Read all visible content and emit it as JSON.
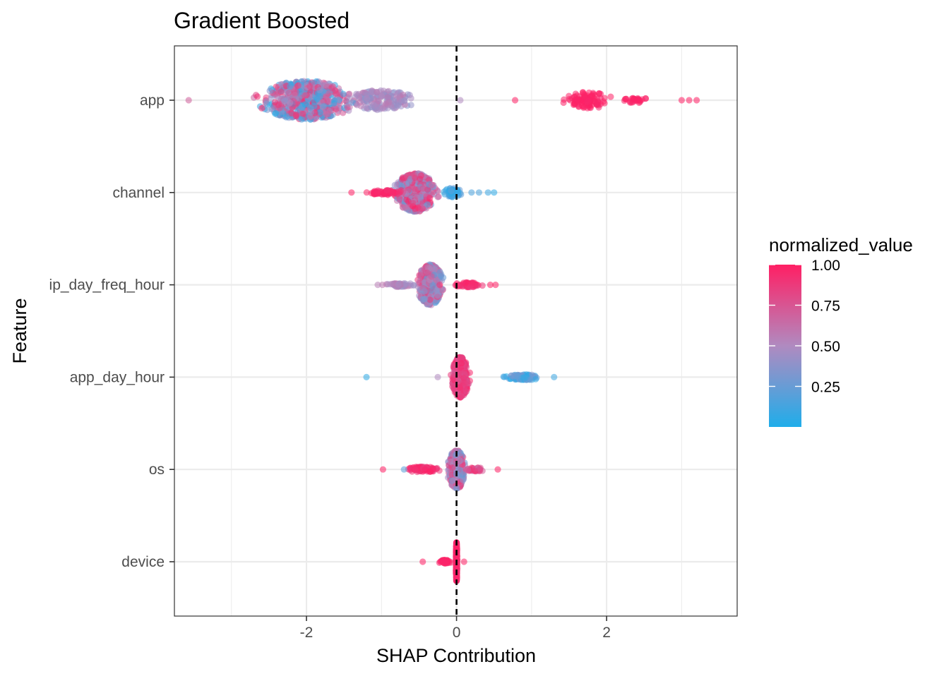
{
  "chart_data": {
    "type": "scatter",
    "subtype": "beeswarm",
    "title": "Gradient Boosted",
    "xlabel": "SHAP Contribution",
    "ylabel": "Feature",
    "xlim": [
      -3.76,
      3.74
    ],
    "x_ticks": [
      -2,
      0,
      2
    ],
    "x_tick_labels": [
      "-2",
      "0",
      "2"
    ],
    "grid": true,
    "reference_line": {
      "x": 0,
      "style": "dashed",
      "color": "#000000"
    },
    "categories": [
      "app",
      "channel",
      "ip_day_freq_hour",
      "app_day_hour",
      "os",
      "device"
    ],
    "series": [
      {
        "name": "app",
        "groups": [
          {
            "center": -2.0,
            "spread": 0.85,
            "height": 0.42,
            "count": 640,
            "color_low": 0.0,
            "color_high": 0.95
          },
          {
            "center": -1.0,
            "spread": 0.55,
            "height": 0.22,
            "count": 170,
            "color_low": 0.35,
            "color_high": 0.6
          },
          {
            "center": 1.75,
            "spread": 0.4,
            "height": 0.18,
            "count": 110,
            "color_low": 0.95,
            "color_high": 1.0
          },
          {
            "center": 2.4,
            "spread": 0.25,
            "height": 0.06,
            "count": 30,
            "color_low": 0.95,
            "color_high": 1.0
          }
        ],
        "outliers": [
          {
            "x": -3.57,
            "value": 0.7
          },
          {
            "x": 0.05,
            "value": 0.5
          },
          {
            "x": 0.78,
            "value": 1.0
          },
          {
            "x": 3.0,
            "value": 1.0
          },
          {
            "x": 3.1,
            "value": 1.0
          },
          {
            "x": 3.2,
            "value": 1.0
          }
        ]
      },
      {
        "name": "channel",
        "groups": [
          {
            "center": -0.55,
            "spread": 0.35,
            "height": 0.42,
            "count": 520,
            "color_low": 0.2,
            "color_high": 1.0
          },
          {
            "center": -0.95,
            "spread": 0.3,
            "height": 0.05,
            "count": 60,
            "color_low": 0.9,
            "color_high": 1.0
          },
          {
            "center": -0.05,
            "spread": 0.15,
            "height": 0.1,
            "count": 70,
            "color_low": 0.0,
            "color_high": 0.25
          }
        ],
        "outliers": [
          {
            "x": -1.4,
            "value": 1.0
          },
          {
            "x": 0.2,
            "value": 0.15
          },
          {
            "x": 0.3,
            "value": 0.15
          },
          {
            "x": 0.42,
            "value": 0.1
          },
          {
            "x": 0.5,
            "value": 0.05
          }
        ]
      },
      {
        "name": "ip_day_freq_hour",
        "groups": [
          {
            "center": -0.35,
            "spread": 0.22,
            "height": 0.44,
            "count": 440,
            "color_low": 0.2,
            "color_high": 0.95
          },
          {
            "center": -0.75,
            "spread": 0.25,
            "height": 0.04,
            "count": 50,
            "color_low": 0.35,
            "color_high": 0.6
          },
          {
            "center": 0.15,
            "spread": 0.25,
            "height": 0.05,
            "count": 70,
            "color_low": 0.85,
            "color_high": 1.0
          }
        ],
        "outliers": [
          {
            "x": -1.05,
            "value": 0.55
          },
          {
            "x": 0.45,
            "value": 1.0
          },
          {
            "x": 0.52,
            "value": 1.0
          }
        ]
      },
      {
        "name": "app_day_hour",
        "groups": [
          {
            "center": 0.05,
            "spread": 0.15,
            "height": 0.44,
            "count": 440,
            "color_low": 0.7,
            "color_high": 1.0
          },
          {
            "center": 0.9,
            "spread": 0.35,
            "height": 0.06,
            "count": 110,
            "color_low": 0.0,
            "color_high": 0.35
          }
        ],
        "outliers": [
          {
            "x": -1.2,
            "value": 0.05
          },
          {
            "x": -0.25,
            "value": 0.5
          },
          {
            "x": 1.3,
            "value": 0.1
          }
        ]
      },
      {
        "name": "os",
        "groups": [
          {
            "center": 0.0,
            "spread": 0.15,
            "height": 0.42,
            "count": 420,
            "color_low": 0.2,
            "color_high": 0.9
          },
          {
            "center": -0.45,
            "spread": 0.3,
            "height": 0.06,
            "count": 90,
            "color_low": 0.85,
            "color_high": 1.0
          },
          {
            "center": 0.25,
            "spread": 0.2,
            "height": 0.04,
            "count": 30,
            "color_low": 0.6,
            "color_high": 1.0
          }
        ],
        "outliers": [
          {
            "x": -0.98,
            "value": 1.0
          },
          {
            "x": -0.7,
            "value": 0.2
          },
          {
            "x": 0.55,
            "value": 1.0
          }
        ]
      },
      {
        "name": "device",
        "groups": [
          {
            "center": 0.0,
            "spread": 0.01,
            "height": 0.42,
            "count": 320,
            "color_low": 0.95,
            "color_high": 1.0
          },
          {
            "center": -0.15,
            "spread": 0.12,
            "height": 0.04,
            "count": 40,
            "color_low": 0.95,
            "color_high": 1.0
          }
        ],
        "outliers": [
          {
            "x": -0.45,
            "value": 1.0
          },
          {
            "x": 0.1,
            "value": 1.0
          }
        ]
      }
    ],
    "legend": {
      "title": "normalized_value",
      "placement": "right",
      "type": "colorbar",
      "range": [
        0,
        1
      ],
      "breaks": [
        0.25,
        0.5,
        0.75,
        1.0
      ],
      "labels": [
        "0.25",
        "0.50",
        "0.75",
        "1.00"
      ],
      "color_low": "#1fadea",
      "color_mid": "#b08ac0",
      "color_high": "#ff1f64"
    },
    "point_alpha": 0.55,
    "panel_background": "#ffffff",
    "grid_color": "#ebebeb",
    "panel_border_color": "#333333"
  }
}
